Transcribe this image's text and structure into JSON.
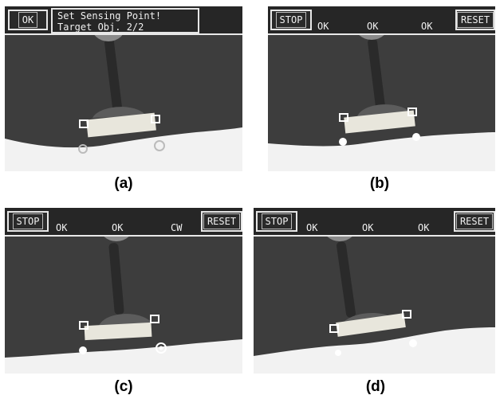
{
  "panels": [
    {
      "caption": "(a)",
      "buttons": {
        "left": "OK"
      },
      "message": {
        "line1": "Set Sensing Point!",
        "line2": "Target Obj. 2/2"
      }
    },
    {
      "caption": "(b)",
      "buttons": {
        "left": "STOP",
        "right": "RESET"
      },
      "status": [
        "OK",
        "OK",
        "OK"
      ]
    },
    {
      "caption": "(c)",
      "buttons": {
        "left": "STOP",
        "right": "RESET"
      },
      "status": [
        "OK",
        "OK",
        "CW"
      ]
    },
    {
      "caption": "(d)",
      "buttons": {
        "left": "STOP",
        "right": "RESET"
      },
      "status": [
        "OK",
        "OK",
        "OK"
      ]
    }
  ],
  "colors": {
    "background": "#3d3d3d",
    "ui_text": "#f0f0f0",
    "marker": "#ffffff"
  }
}
